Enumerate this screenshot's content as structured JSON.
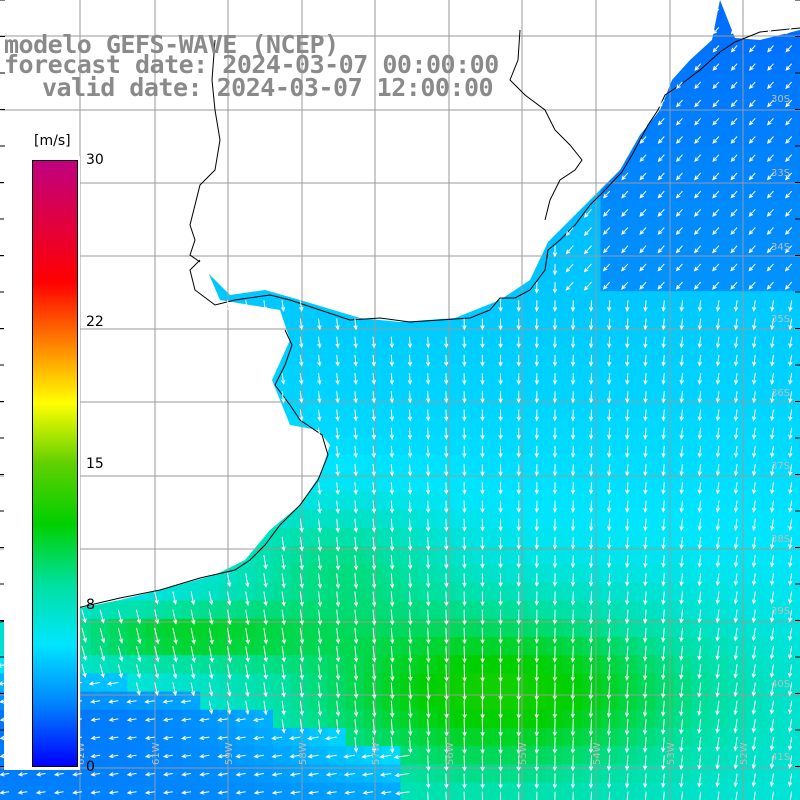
{
  "title": {
    "model": "modelo GEFS-WAVE (NCEP)",
    "forecast_date": "forecast date: 2024-03-07 00:00:00",
    "valid_date": "valid date: 2024-03-07 12:00:00"
  },
  "colorbar": {
    "unit": "[m/s]",
    "min": 0,
    "max": 30,
    "ticks": [
      {
        "label": "30",
        "value": 30
      },
      {
        "label": "22",
        "value": 22
      },
      {
        "label": "15",
        "value": 15
      },
      {
        "label": "8",
        "value": 8
      },
      {
        "label": "0",
        "value": 0
      }
    ],
    "colors": [
      "#0000ff",
      "#0080ff",
      "#00e5ff",
      "#00e0a0",
      "#00d000",
      "#60d000",
      "#ffff00",
      "#ff8000",
      "#ff0000",
      "#e00040",
      "#c00080"
    ]
  },
  "map": {
    "field": "wind speed",
    "land_color": "#ffffff",
    "grid_color": "#9a9a9a",
    "coast_color": "#000000",
    "arrow_color": "#ffffff",
    "lat_labels": [
      "30S",
      "33S",
      "34S",
      "35S",
      "36S",
      "37S",
      "38S",
      "39S",
      "40S",
      "41S"
    ],
    "lon_labels": [
      "62W",
      "61W",
      "59W",
      "58W",
      "57W",
      "56W",
      "55W",
      "54W",
      "53W",
      "52W"
    ]
  }
}
